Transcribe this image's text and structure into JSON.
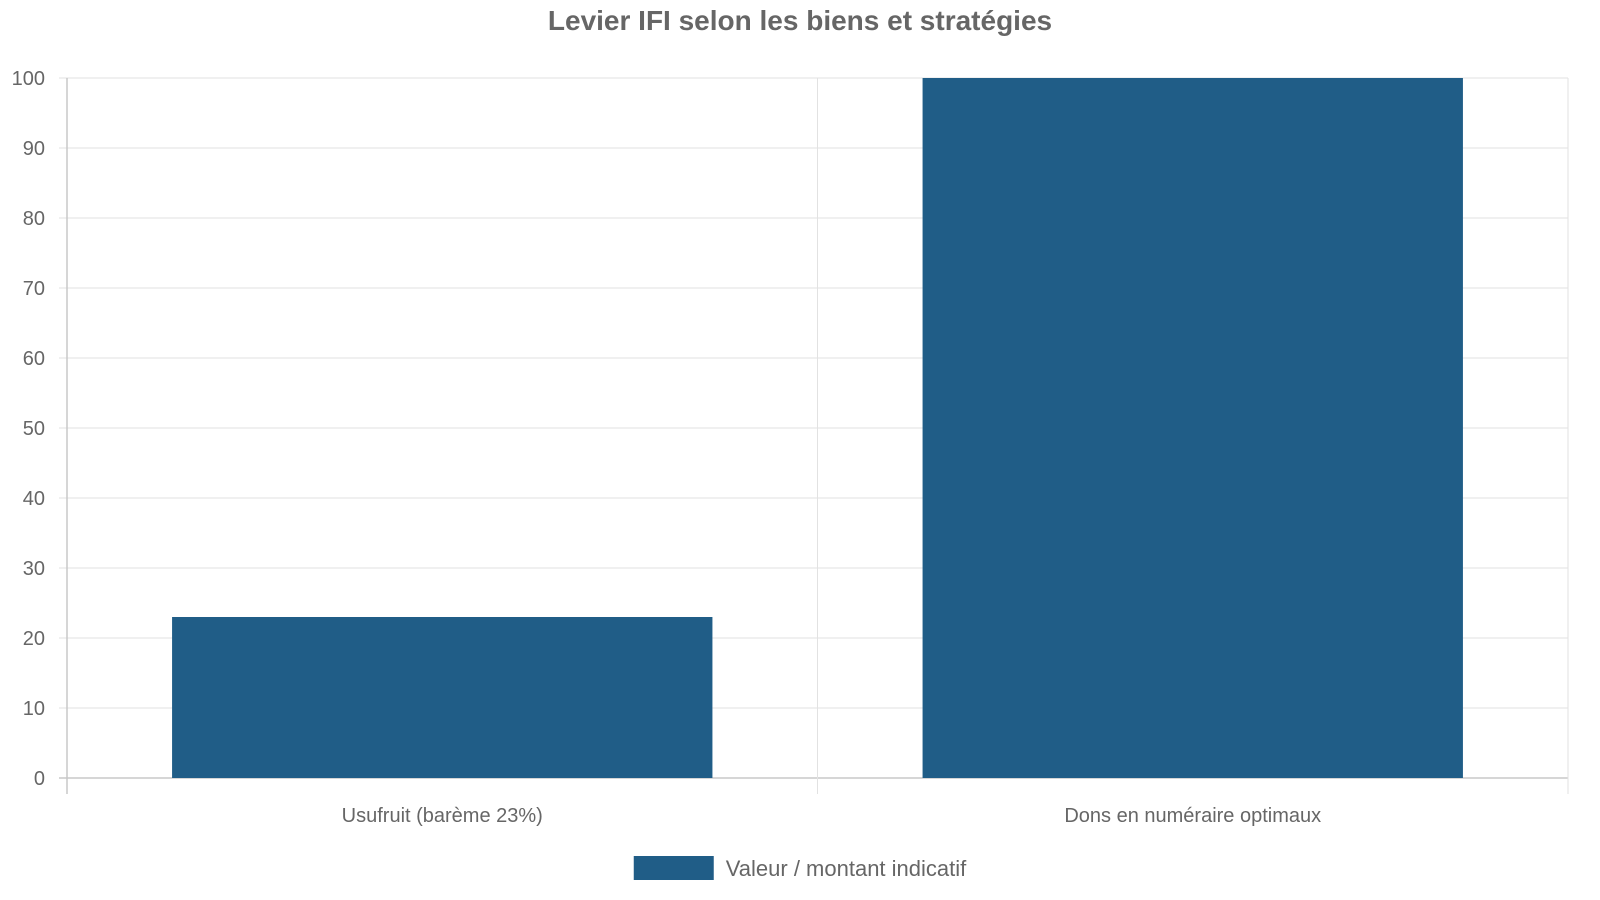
{
  "chart_data": {
    "type": "bar",
    "title": "Levier IFI selon les biens et stratégies",
    "categories": [
      "Usufruit (barème 23%)",
      "Dons en numéraire optimaux"
    ],
    "series": [
      {
        "name": "Valeur / montant indicatif",
        "values": [
          23,
          100
        ],
        "color": "#205d87"
      }
    ],
    "xlabel": "",
    "ylabel": "",
    "ylim": [
      0,
      100
    ],
    "yticks": [
      0,
      10,
      20,
      30,
      40,
      50,
      60,
      70,
      80,
      90,
      100
    ],
    "grid": true,
    "legend": "bottom-center"
  }
}
